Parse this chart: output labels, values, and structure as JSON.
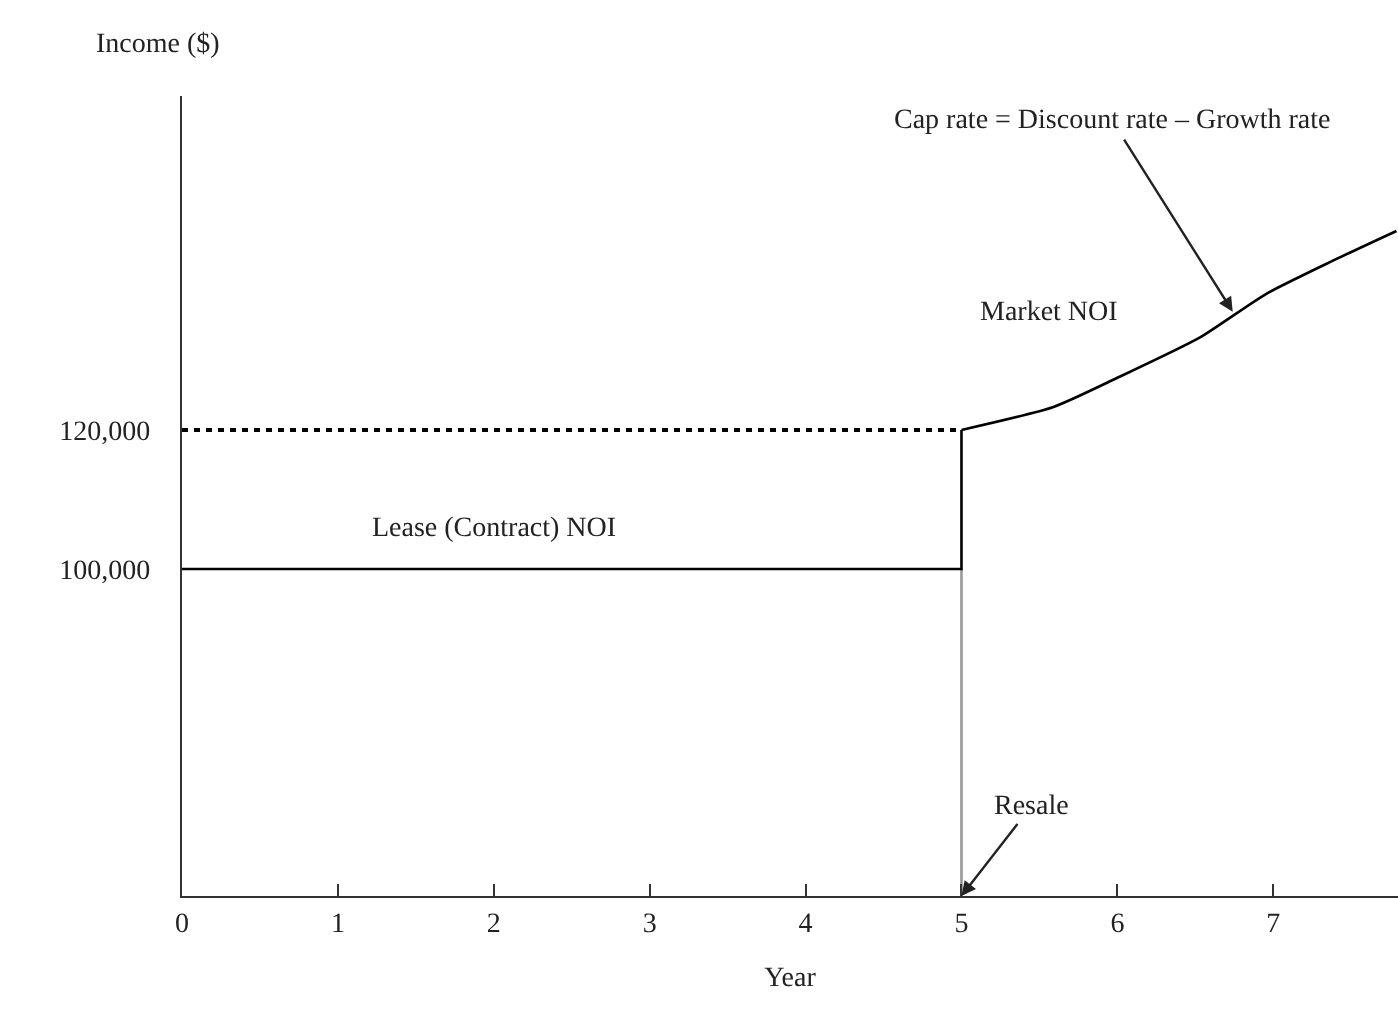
{
  "chart_data": {
    "type": "line",
    "xlabel": "Year",
    "ylabel": "Income ($)",
    "xlim": [
      0,
      7.8
    ],
    "xticks": [
      0,
      1,
      2,
      3,
      4,
      5,
      6,
      7
    ],
    "ylim": [
      53000,
      168000
    ],
    "yticks": [
      {
        "value": 100000,
        "label": "100,000"
      },
      {
        "value": 120000,
        "label": "120,000"
      }
    ],
    "marker": "none",
    "series": [
      {
        "color": "#999999",
        "x": [
          5,
          5
        ],
        "values": [
          53000,
          100000
        ]
      },
      {
        "color": "#000000",
        "x": [
          0,
          5,
          5
        ],
        "values": [
          100000,
          100000,
          120000
        ]
      },
      {
        "color": "#000000",
        "line_style": "dotted",
        "x": [
          0,
          5
        ],
        "values": [
          120000,
          120000
        ]
      },
      {
        "color": "#000000",
        "x": [
          5,
          5.59,
          6.01,
          6.53,
          6.95,
          7.38,
          7.79
        ],
        "values": [
          120000,
          123300,
          127600,
          133300,
          139500,
          144300,
          148600
        ]
      }
    ],
    "annotations": [
      "Lease (Contract) NOI",
      "Market NOI",
      {
        "text": "Cap rate = Discount rate – Growth rate",
        "x": 6.74,
        "y": 137000
      },
      {
        "text": "Resale",
        "x": 5,
        "y": 53000
      }
    ]
  }
}
